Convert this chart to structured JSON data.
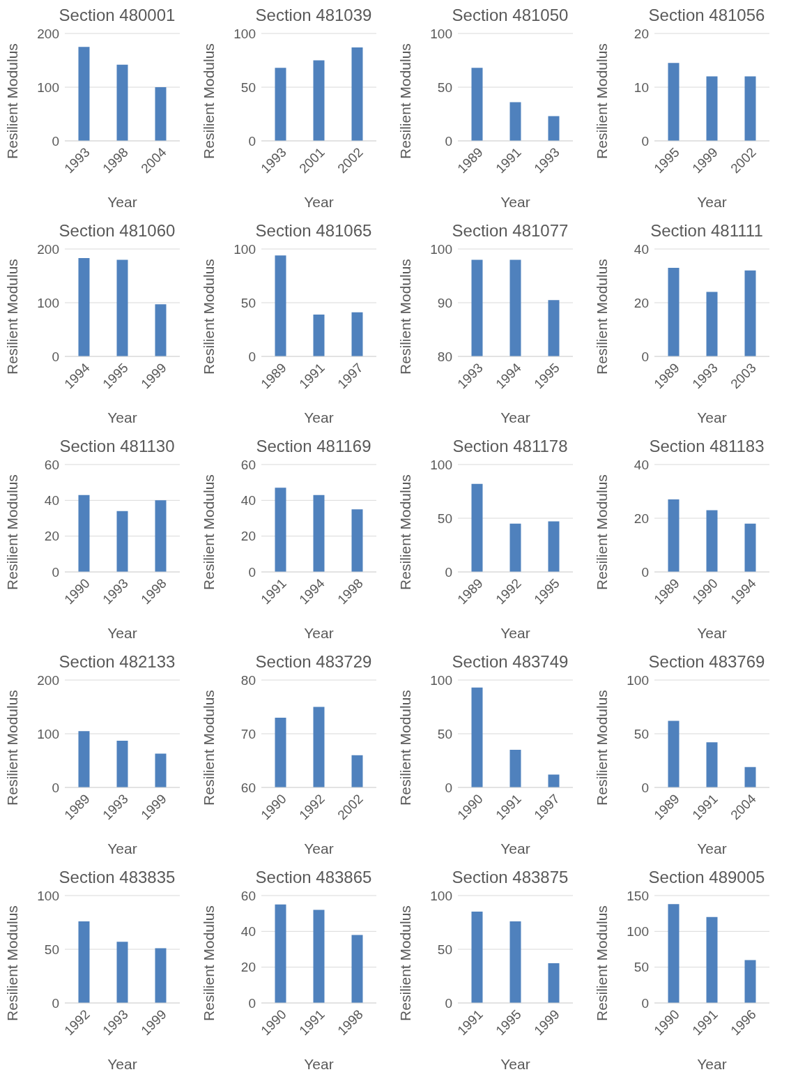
{
  "chart_data": [
    {
      "type": "bar",
      "title": "Section 480001",
      "xlabel": "Year",
      "ylabel": "Resilient Modulus",
      "categories": [
        "1993",
        "1998",
        "2004"
      ],
      "values": [
        175,
        142,
        100
      ],
      "color": "#4f81bd",
      "ylim": [
        0,
        200
      ],
      "yticks": [
        0,
        100,
        200
      ],
      "grid": "y",
      "legend": false
    },
    {
      "type": "bar",
      "title": "Section 481039",
      "xlabel": "Year",
      "ylabel": "Resilient Modulus",
      "categories": [
        "1993",
        "2001",
        "2002"
      ],
      "values": [
        68,
        75,
        87
      ],
      "color": "#4f81bd",
      "ylim": [
        0,
        100
      ],
      "yticks": [
        0,
        50,
        100
      ],
      "grid": "y",
      "legend": false
    },
    {
      "type": "bar",
      "title": "Section 481050",
      "xlabel": "Year",
      "ylabel": "Resilient Modulus",
      "categories": [
        "1989",
        "1991",
        "1993"
      ],
      "values": [
        68,
        36,
        23
      ],
      "color": "#4f81bd",
      "ylim": [
        0,
        100
      ],
      "yticks": [
        0,
        50,
        100
      ],
      "grid": "y",
      "legend": false
    },
    {
      "type": "bar",
      "title": "Section 481056",
      "xlabel": "Year",
      "ylabel": "Resilient Modulus",
      "categories": [
        "1995",
        "1999",
        "2002"
      ],
      "values": [
        14.5,
        12,
        12
      ],
      "color": "#4f81bd",
      "ylim": [
        0,
        20
      ],
      "yticks": [
        0,
        10,
        20
      ],
      "grid": "y",
      "legend": false
    },
    {
      "type": "bar",
      "title": "Section 481060",
      "xlabel": "Year",
      "ylabel": "Resilient Modulus",
      "categories": [
        "1994",
        "1995",
        "1999"
      ],
      "values": [
        183,
        180,
        97
      ],
      "color": "#4f81bd",
      "ylim": [
        0,
        200
      ],
      "yticks": [
        0,
        100,
        200
      ],
      "grid": "y",
      "legend": false
    },
    {
      "type": "bar",
      "title": "Section 481065",
      "xlabel": "Year",
      "ylabel": "Resilient Modulus",
      "categories": [
        "1989",
        "1991",
        "1997"
      ],
      "values": [
        94,
        39,
        41
      ],
      "color": "#4f81bd",
      "ylim": [
        0,
        100
      ],
      "yticks": [
        0,
        50,
        100
      ],
      "grid": "y",
      "legend": false
    },
    {
      "type": "bar",
      "title": "Section 481077",
      "xlabel": "Year",
      "ylabel": "Resilient Modulus",
      "categories": [
        "1993",
        "1994",
        "1995"
      ],
      "values": [
        98,
        98,
        90.5
      ],
      "color": "#4f81bd",
      "ylim": [
        80,
        100
      ],
      "yticks": [
        80,
        90,
        100
      ],
      "grid": "y",
      "legend": false
    },
    {
      "type": "bar",
      "title": "Section 481111",
      "xlabel": "Year",
      "ylabel": "Resilient Modulus",
      "categories": [
        "1989",
        "1993",
        "2003"
      ],
      "values": [
        33,
        24,
        32
      ],
      "color": "#4f81bd",
      "ylim": [
        0,
        40
      ],
      "yticks": [
        0,
        20,
        40
      ],
      "grid": "y",
      "legend": false
    },
    {
      "type": "bar",
      "title": "Section 481130",
      "xlabel": "Year",
      "ylabel": "Resilient Modulus",
      "categories": [
        "1990",
        "1993",
        "1998"
      ],
      "values": [
        43,
        34,
        40
      ],
      "color": "#4f81bd",
      "ylim": [
        0,
        60
      ],
      "yticks": [
        0,
        20,
        40,
        60
      ],
      "grid": "y",
      "legend": false
    },
    {
      "type": "bar",
      "title": "Section 481169",
      "xlabel": "Year",
      "ylabel": "Resilient Modulus",
      "categories": [
        "1991",
        "1994",
        "1998"
      ],
      "values": [
        47,
        43,
        35
      ],
      "color": "#4f81bd",
      "ylim": [
        0,
        60
      ],
      "yticks": [
        0,
        20,
        40,
        60
      ],
      "grid": "y",
      "legend": false
    },
    {
      "type": "bar",
      "title": "Section 481178",
      "xlabel": "Year",
      "ylabel": "Resilient Modulus",
      "categories": [
        "1989",
        "1992",
        "1995"
      ],
      "values": [
        82,
        45,
        47
      ],
      "color": "#4f81bd",
      "ylim": [
        0,
        100
      ],
      "yticks": [
        0,
        50,
        100
      ],
      "grid": "y",
      "legend": false
    },
    {
      "type": "bar",
      "title": "Section 481183",
      "xlabel": "Year",
      "ylabel": "Resilient Modulus",
      "categories": [
        "1989",
        "1990",
        "1994"
      ],
      "values": [
        27,
        23,
        18
      ],
      "color": "#4f81bd",
      "ylim": [
        0,
        40
      ],
      "yticks": [
        0,
        20,
        40
      ],
      "grid": "y",
      "legend": false
    },
    {
      "type": "bar",
      "title": "Section 482133",
      "xlabel": "Year",
      "ylabel": "Resilient Modulus",
      "categories": [
        "1989",
        "1993",
        "1999"
      ],
      "values": [
        105,
        87,
        63
      ],
      "color": "#4f81bd",
      "ylim": [
        0,
        200
      ],
      "yticks": [
        0,
        100,
        200
      ],
      "grid": "y",
      "legend": false
    },
    {
      "type": "bar",
      "title": "Section 483729",
      "xlabel": "Year",
      "ylabel": "Resilient Modulus",
      "categories": [
        "1990",
        "1992",
        "2002"
      ],
      "values": [
        73,
        75,
        66
      ],
      "color": "#4f81bd",
      "ylim": [
        60,
        80
      ],
      "yticks": [
        60,
        70,
        80
      ],
      "grid": "y",
      "legend": false
    },
    {
      "type": "bar",
      "title": "Section 483749",
      "xlabel": "Year",
      "ylabel": "Resilient Modulus",
      "categories": [
        "1990",
        "1991",
        "1997"
      ],
      "values": [
        93,
        35,
        12
      ],
      "color": "#4f81bd",
      "ylim": [
        0,
        100
      ],
      "yticks": [
        0,
        50,
        100
      ],
      "grid": "y",
      "legend": false
    },
    {
      "type": "bar",
      "title": "Section 483769",
      "xlabel": "Year",
      "ylabel": "Resilient Modulus",
      "categories": [
        "1989",
        "1991",
        "2004"
      ],
      "values": [
        62,
        42,
        19
      ],
      "color": "#4f81bd",
      "ylim": [
        0,
        100
      ],
      "yticks": [
        0,
        50,
        100
      ],
      "grid": "y",
      "legend": false
    },
    {
      "type": "bar",
      "title": "Section 483835",
      "xlabel": "Year",
      "ylabel": "Resilient Modulus",
      "categories": [
        "1992",
        "1993",
        "1999"
      ],
      "values": [
        76,
        57,
        51
      ],
      "color": "#4f81bd",
      "ylim": [
        0,
        100
      ],
      "yticks": [
        0,
        50,
        100
      ],
      "grid": "y",
      "legend": false
    },
    {
      "type": "bar",
      "title": "Section 483865",
      "xlabel": "Year",
      "ylabel": "Resilient Modulus",
      "categories": [
        "1990",
        "1991",
        "1998"
      ],
      "values": [
        55,
        52,
        38
      ],
      "color": "#4f81bd",
      "ylim": [
        0,
        60
      ],
      "yticks": [
        0,
        20,
        40,
        60
      ],
      "grid": "y",
      "legend": false
    },
    {
      "type": "bar",
      "title": "Section 483875",
      "xlabel": "Year",
      "ylabel": "Resilient Modulus",
      "categories": [
        "1991",
        "1995",
        "1999"
      ],
      "values": [
        85,
        76,
        37
      ],
      "color": "#4f81bd",
      "ylim": [
        0,
        100
      ],
      "yticks": [
        0,
        50,
        100
      ],
      "grid": "y",
      "legend": false
    },
    {
      "type": "bar",
      "title": "Section 489005",
      "xlabel": "Year",
      "ylabel": "Resilient Modulus",
      "categories": [
        "1990",
        "1991",
        "1996"
      ],
      "values": [
        138,
        120,
        60
      ],
      "color": "#4f81bd",
      "ylim": [
        0,
        150
      ],
      "yticks": [
        0,
        50,
        100,
        150
      ],
      "grid": "y",
      "legend": false
    }
  ]
}
